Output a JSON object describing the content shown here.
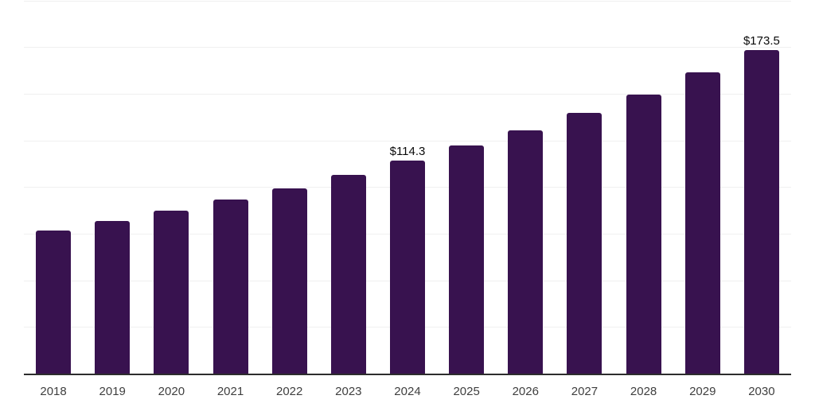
{
  "colors": {
    "bar": "#38124F",
    "axis": "#2d2d2d",
    "gridline": "#f0f0f0",
    "tick_label": "#3f3f3f",
    "data_label": "#0a0a0a",
    "background": "#ffffff"
  },
  "chart_data": {
    "type": "bar",
    "title": "",
    "xlabel": "",
    "ylabel": "",
    "categories": [
      "2018",
      "2019",
      "2020",
      "2021",
      "2022",
      "2023",
      "2024",
      "2025",
      "2026",
      "2027",
      "2028",
      "2029",
      "2030"
    ],
    "values": [
      77.0,
      81.8,
      87.7,
      93.4,
      99.5,
      106.6,
      114.3,
      122.4,
      130.7,
      139.9,
      149.9,
      161.8,
      173.5
    ],
    "point_labels": [
      "",
      "",
      "",
      "",
      "",
      "",
      "$114.3",
      "",
      "",
      "",
      "",
      "",
      "$173.5"
    ],
    "ylim": [
      0,
      200
    ],
    "gridline_interval": 25,
    "grid": "horizontal only, no y-axis tick labels",
    "legend": "none"
  }
}
